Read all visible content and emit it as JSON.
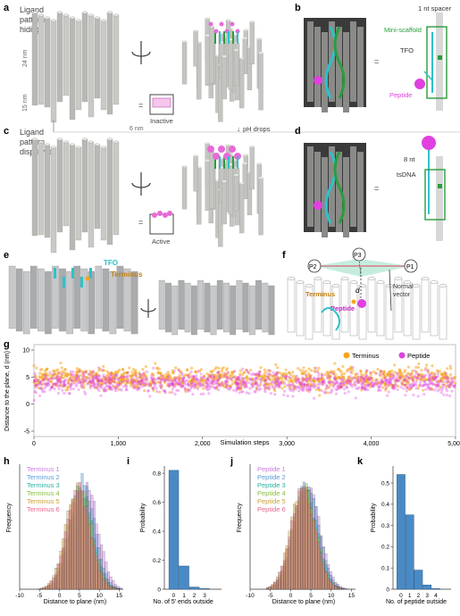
{
  "panel_letters": {
    "a": "a",
    "b": "b",
    "c": "c",
    "d": "d",
    "e": "e",
    "f": "f",
    "g": "g",
    "h": "h",
    "i": "i",
    "j": "j",
    "k": "k"
  },
  "panel_a": {
    "title_l1": "Ligand",
    "title_l2": "pattern",
    "title_l3": "hiding",
    "dim_24": "24 nm",
    "dim_15": "15 nm",
    "state_label": "Inactive"
  },
  "panel_b": {
    "spacer": "1 nt spacer",
    "scaffold": "Mini-scaffold",
    "tfo": "TFO",
    "peptide": "Peptide"
  },
  "panel_c": {
    "title_l1": "Ligand",
    "title_l2": "pattern",
    "title_l3": "displayed",
    "dim_6": "6 nm",
    "ph_label": "pH drops",
    "state_label": "Active"
  },
  "panel_d": {
    "nt8": "8 nt",
    "tsdna": "tsDNA"
  },
  "panel_e": {
    "tfo": "TFO",
    "terminus": "Terminus"
  },
  "panel_f": {
    "p1": "P1",
    "p2": "P2",
    "p3": "P3",
    "d": "d",
    "normal_l1": "Normal",
    "normal_l2": "vector",
    "terminus": "Terminus",
    "peptide": "Peptide"
  },
  "colors": {
    "terminus": "#f5a623",
    "peptide": "#e040e0",
    "teal": "#2fc1c8",
    "green": "#2a9d3c",
    "blue_bar": "#4a8ac4",
    "pink": "#e86bd8"
  },
  "chart_data": [
    {
      "type": "scatter",
      "ylabel": "Distance to the plane, d (nm)",
      "xlabel": "Simulation steps",
      "x_ticks": [
        "0",
        "1,000",
        "2,000",
        "3,000",
        "4,000",
        "5,000"
      ],
      "y_ticks": [
        "10",
        "5",
        "0",
        "-5"
      ],
      "ylim": [
        -6,
        11
      ],
      "xlim": [
        0,
        5000
      ],
      "legend": [
        {
          "name": "Terminus",
          "color": "#f5a623"
        },
        {
          "name": "Peptide",
          "color": "#e040e0"
        }
      ],
      "legend_position": "top-right",
      "series": [
        {
          "name": "Terminus",
          "mean": 4.8,
          "spread": 2.6
        },
        {
          "name": "Peptide",
          "mean": 4.0,
          "spread": 2.6
        }
      ]
    },
    {
      "type": "histogram",
      "panel": "h",
      "ylabel": "Frequency",
      "xlabel": "Distance to plane (nm)",
      "x_ticks": [
        "-10",
        "-5",
        "0",
        "5",
        "10",
        "15"
      ],
      "series": [
        {
          "name": "Terminus 1",
          "color": "#c77ce0",
          "center": 6.5
        },
        {
          "name": "Terminus 2",
          "color": "#5b9bd5",
          "center": 5.5
        },
        {
          "name": "Terminus 3",
          "color": "#27b0a0",
          "center": 5.0
        },
        {
          "name": "Terminus 4",
          "color": "#8bbf3f",
          "center": 4.8
        },
        {
          "name": "Terminus 5",
          "color": "#c9a13a",
          "center": 4.2
        },
        {
          "name": "Terminus 6",
          "color": "#e8658c",
          "center": 4.5
        }
      ]
    },
    {
      "type": "bar",
      "panel": "i",
      "ylabel": "Probability",
      "xlabel": "No. of 5′ ends outside",
      "categories": [
        "0",
        "1",
        "2",
        "3"
      ],
      "values": [
        0.82,
        0.16,
        0.015,
        0.005
      ],
      "ylim": [
        0,
        0.85
      ],
      "y_ticks": [
        "0.8",
        "0.6",
        "0.4",
        "0.2",
        "0"
      ]
    },
    {
      "type": "histogram",
      "panel": "j",
      "ylabel": "Frequency",
      "xlabel": "Distance to plane (nm)",
      "x_ticks": [
        "-10",
        "-5",
        "0",
        "5",
        "10",
        "15"
      ],
      "series": [
        {
          "name": "Peptide 1",
          "color": "#c77ce0",
          "center": 4.0
        },
        {
          "name": "Peptide 2",
          "color": "#5b9bd5",
          "center": 3.5
        },
        {
          "name": "Peptide 3",
          "color": "#27b0a0",
          "center": 3.2
        },
        {
          "name": "Peptide 4",
          "color": "#8bbf3f",
          "center": 3.0
        },
        {
          "name": "Peptide 5",
          "color": "#c9a13a",
          "center": 2.6
        },
        {
          "name": "Peptide 6",
          "color": "#e8658c",
          "center": 2.8
        }
      ]
    },
    {
      "type": "bar",
      "panel": "k",
      "ylabel": "Probability",
      "xlabel": "No. of peptide outside",
      "categories": [
        "0",
        "1",
        "2",
        "3",
        "4"
      ],
      "values": [
        0.54,
        0.35,
        0.09,
        0.02,
        0.003
      ],
      "ylim": [
        0,
        0.58
      ],
      "y_ticks": [
        "0.5",
        "0.4",
        "0.3",
        "0.2",
        "0.1",
        "0"
      ]
    }
  ]
}
